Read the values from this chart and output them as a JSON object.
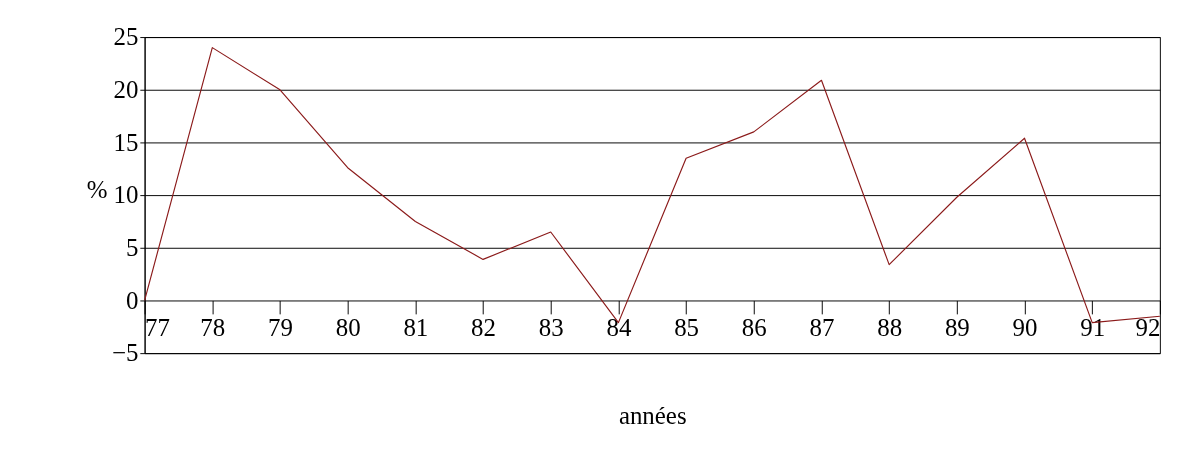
{
  "chart_data": {
    "type": "line",
    "xlabel": "années",
    "ylabel": "%",
    "categories": [
      "77",
      "78",
      "79",
      "80",
      "81",
      "82",
      "83",
      "84",
      "85",
      "86",
      "87",
      "88",
      "89",
      "90",
      "91",
      "92"
    ],
    "series": [
      {
        "color": "#8b1a1a",
        "values": [
          0,
          24.0,
          20.0,
          12.6,
          7.5,
          3.9,
          6.5,
          -2.1,
          13.5,
          16.0,
          20.9,
          3.4,
          9.8,
          15.4,
          -2.1,
          -1.5
        ]
      }
    ],
    "ylim": [
      -5,
      25
    ],
    "yticks": [
      -5,
      0,
      5,
      10,
      15,
      20,
      25
    ],
    "grid": "y",
    "marker": "none",
    "line_style": "solid"
  }
}
